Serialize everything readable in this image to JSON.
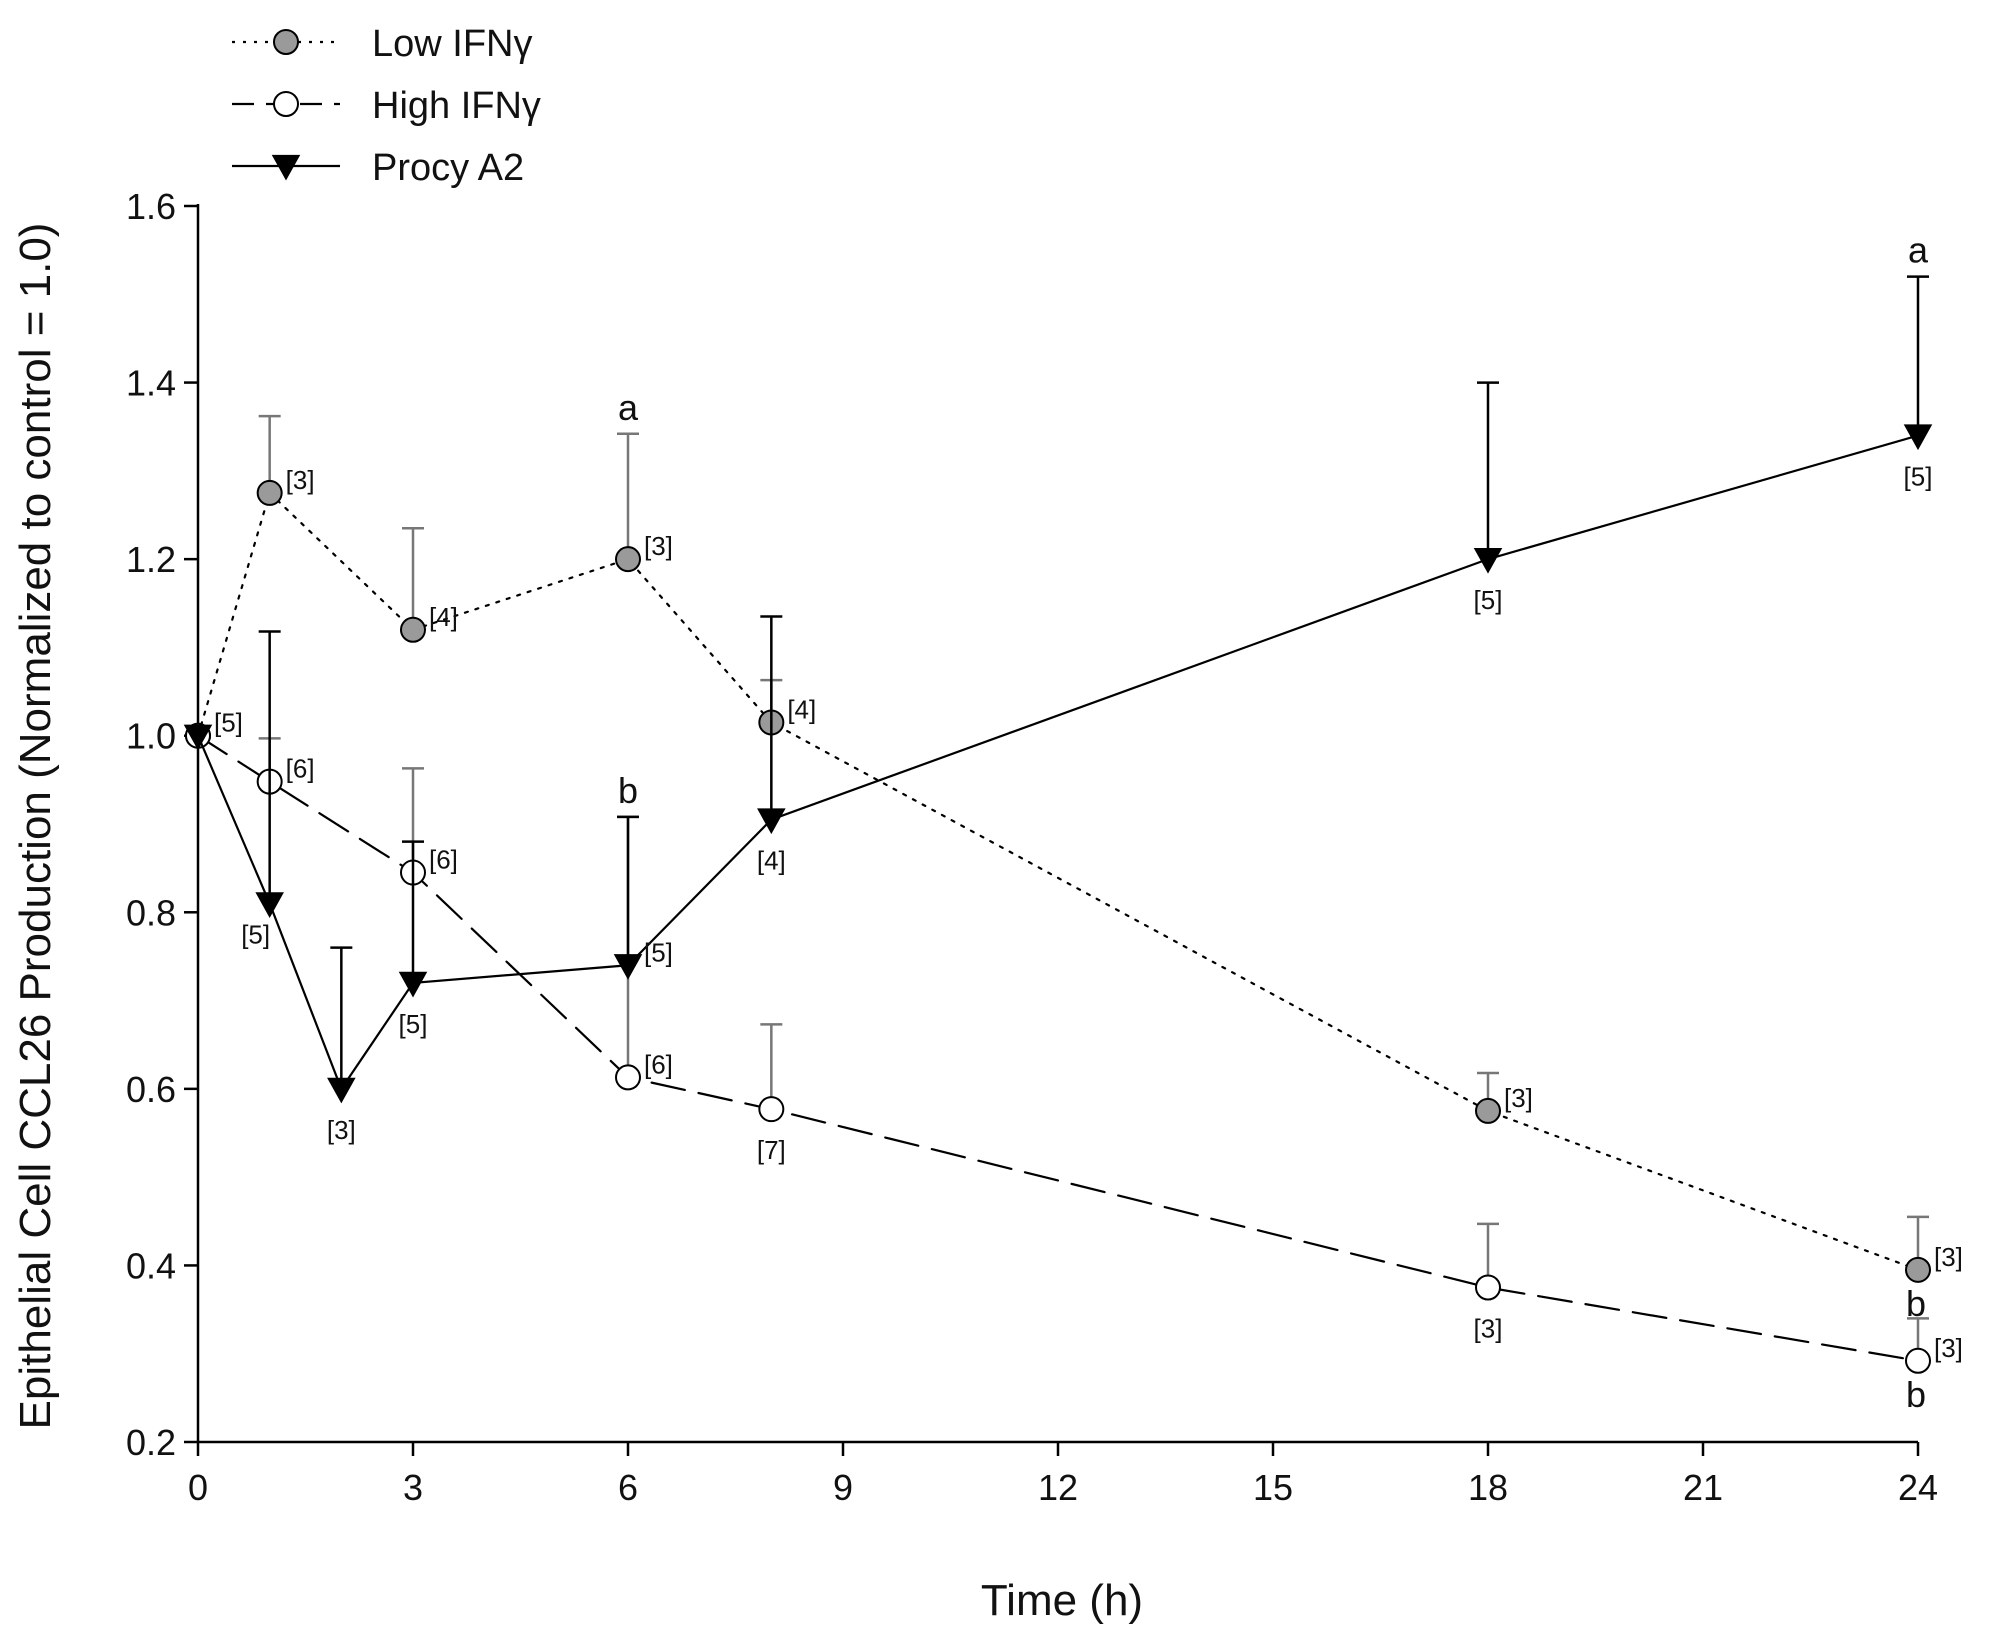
{
  "chart_data": {
    "type": "line",
    "title": "",
    "xlabel": "Time (h)",
    "ylabel": "Epithelial Cell CCL26 Production (Normalized to control = 1.0)",
    "xlim": [
      0,
      24
    ],
    "ylim": [
      0.2,
      1.6
    ],
    "xticks": [
      0,
      3,
      6,
      9,
      12,
      15,
      18,
      21,
      24
    ],
    "yticks": [
      0.2,
      0.4,
      0.6,
      0.8,
      1.0,
      1.2,
      1.4,
      1.6
    ],
    "xtick_labels": [
      "0",
      "3",
      "6",
      "9",
      "12",
      "15",
      "18",
      "21",
      "24"
    ],
    "ytick_labels": [
      "0.2",
      "0.4",
      "0.6",
      "0.8",
      "1.0",
      "1.2",
      "1.4",
      "1.6"
    ],
    "grid": false,
    "legend_position": "top-left",
    "series": [
      {
        "name": "Low IFNγ",
        "line_style": "dotted",
        "marker": "circle",
        "marker_fill": "#9a9a9a",
        "error_color": "#777777",
        "x": [
          0,
          1,
          3,
          6,
          8,
          18,
          24
        ],
        "y": [
          1.0,
          1.275,
          1.12,
          1.2,
          1.015,
          0.575,
          0.395
        ],
        "err_upper": [
          null,
          1.362,
          1.235,
          1.342,
          1.063,
          0.618,
          0.455
        ],
        "n_labels": [
          "",
          "[3]",
          "[4]",
          "[3]",
          "[4]",
          "[3]",
          "[3]"
        ],
        "n_pos": [
          "",
          "right",
          "right",
          "right",
          "right",
          "right",
          "right"
        ],
        "sig_labels": [
          "",
          "",
          "",
          "a",
          "",
          "",
          "b"
        ]
      },
      {
        "name": "High IFNγ",
        "line_style": "dashed",
        "marker": "circle",
        "marker_fill": "#ffffff",
        "error_color": "#777777",
        "x": [
          0,
          1,
          3,
          6,
          8,
          18,
          24
        ],
        "y": [
          1.0,
          0.948,
          0.845,
          0.613,
          0.577,
          0.375,
          0.292
        ],
        "err_upper": [
          null,
          0.997,
          0.963,
          0.908,
          0.673,
          0.447,
          0.34
        ],
        "n_labels": [
          "",
          "[6]",
          "[6]",
          "[6]",
          "[7]",
          "[3]",
          "[3]"
        ],
        "n_pos": [
          "",
          "right",
          "right",
          "right",
          "below",
          "below",
          "right"
        ],
        "sig_labels": [
          "",
          "",
          "",
          "b",
          "",
          "",
          "b"
        ]
      },
      {
        "name": "Procy A2",
        "line_style": "solid",
        "marker": "triangle-down",
        "marker_fill": "#000000",
        "error_color": "#000000",
        "x": [
          0,
          1,
          2,
          3,
          6,
          8,
          18,
          24
        ],
        "y": [
          1.0,
          0.81,
          0.6,
          0.72,
          0.74,
          0.905,
          1.2,
          1.34
        ],
        "err_upper": [
          null,
          1.118,
          0.76,
          0.88,
          0.908,
          1.135,
          1.4,
          1.52
        ],
        "n_labels": [
          "[5]",
          "[5]",
          "[3]",
          "[5]",
          "[5]",
          "[4]",
          "[5]",
          "[5]"
        ],
        "n_pos": [
          "right",
          "below-left",
          "below",
          "below",
          "right",
          "below",
          "below",
          "below"
        ],
        "sig_labels": [
          "",
          "",
          "",
          "",
          "",
          "",
          "",
          "a"
        ]
      }
    ]
  }
}
